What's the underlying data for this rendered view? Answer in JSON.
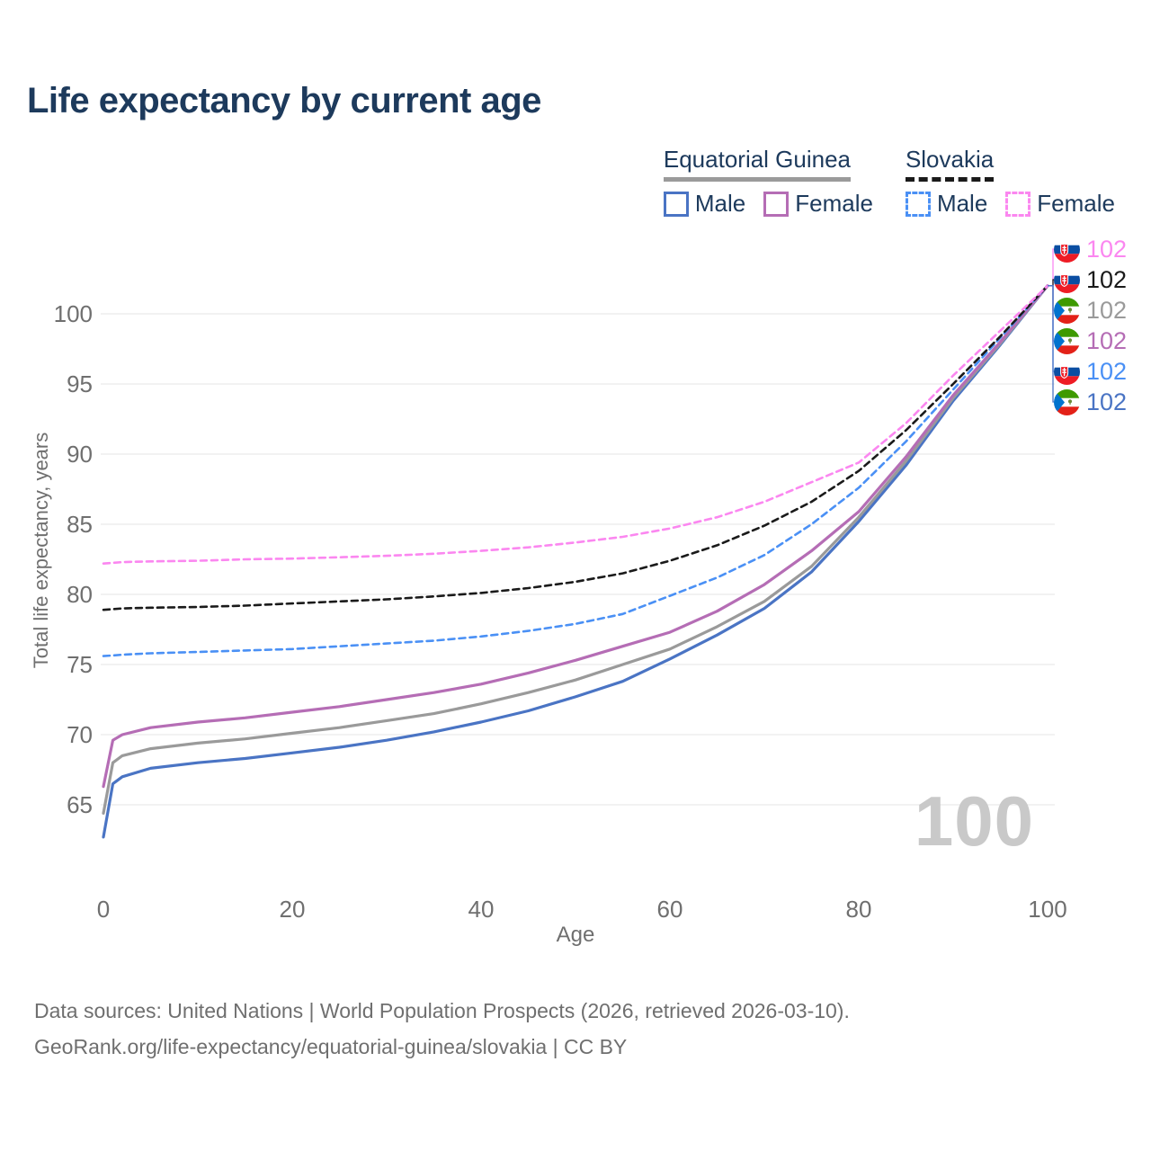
{
  "title": "Life expectancy by current age",
  "legend": {
    "groups": [
      {
        "name": "Equatorial Guinea",
        "line_style": "solid",
        "line_color": "#9a9a9a",
        "items": [
          {
            "label": "Male",
            "color": "#4a74c4",
            "dashed": false
          },
          {
            "label": "Female",
            "color": "#b56db5",
            "dashed": false
          }
        ]
      },
      {
        "name": "Slovakia",
        "line_style": "dashed",
        "line_color": "#1a1a1a",
        "items": [
          {
            "label": "Male",
            "color": "#4a90f5",
            "dashed": true
          },
          {
            "label": "Female",
            "color": "#fb87f0",
            "dashed": true
          }
        ]
      }
    ]
  },
  "y_axis": {
    "label": "Total life expectancy, years",
    "ticks": [
      100,
      95,
      90,
      85,
      80,
      75,
      70,
      65
    ]
  },
  "x_axis": {
    "label": "Age",
    "ticks": [
      0,
      20,
      40,
      60,
      80,
      100
    ]
  },
  "age_indicator": "100",
  "end_labels": [
    {
      "flag": "sk",
      "country": "Slovakia",
      "series": "Female",
      "value": "102",
      "color": "#fb87f0"
    },
    {
      "flag": "sk",
      "country": "Slovakia",
      "series": "All",
      "value": "102",
      "color": "#1a1a1a"
    },
    {
      "flag": "gq",
      "country": "Equatorial Guinea",
      "series": "All",
      "value": "102",
      "color": "#9a9a9a"
    },
    {
      "flag": "gq",
      "country": "Equatorial Guinea",
      "series": "Female",
      "value": "102",
      "color": "#b56db5"
    },
    {
      "flag": "sk",
      "country": "Slovakia",
      "series": "Male",
      "value": "102",
      "color": "#4a90f5"
    },
    {
      "flag": "gq",
      "country": "Equatorial Guinea",
      "series": "Male",
      "value": "102",
      "color": "#4a74c4"
    }
  ],
  "footer": {
    "line1": "Data sources: United Nations | World Population Prospects (2026, retrieved 2026-03-10).",
    "line2": "GeoRank.org/life-expectancy/equatorial-guinea/slovakia | CC BY"
  },
  "chart_data": {
    "type": "line",
    "title": "Life expectancy by current age",
    "xlabel": "Age",
    "ylabel": "Total life expectancy, years",
    "xlim": [
      0,
      100
    ],
    "ylim": [
      62,
      103
    ],
    "grid": "horizontal-only",
    "legend_position": "top-right",
    "x": [
      0,
      1,
      2,
      5,
      10,
      15,
      20,
      25,
      30,
      35,
      40,
      45,
      50,
      55,
      60,
      65,
      70,
      75,
      80,
      85,
      90,
      95,
      100
    ],
    "series": [
      {
        "name": "Equatorial Guinea Male",
        "color": "#4a74c4",
        "dash": false,
        "values": [
          62.7,
          66.5,
          67.0,
          67.6,
          68.0,
          68.3,
          68.7,
          69.1,
          69.6,
          70.2,
          70.9,
          71.7,
          72.7,
          73.8,
          75.4,
          77.1,
          79.0,
          81.6,
          85.2,
          89.2,
          93.8,
          97.8,
          102
        ]
      },
      {
        "name": "Equatorial Guinea All",
        "color": "#9a9a9a",
        "dash": false,
        "values": [
          64.4,
          68.0,
          68.5,
          69.0,
          69.4,
          69.7,
          70.1,
          70.5,
          71.0,
          71.5,
          72.2,
          73.0,
          73.9,
          75.0,
          76.1,
          77.7,
          79.5,
          82.0,
          85.5,
          89.5,
          94.0,
          97.9,
          102
        ]
      },
      {
        "name": "Equatorial Guinea Female",
        "color": "#b56db5",
        "dash": false,
        "values": [
          66.3,
          69.6,
          70.0,
          70.5,
          70.9,
          71.2,
          71.6,
          72.0,
          72.5,
          73.0,
          73.6,
          74.4,
          75.3,
          76.3,
          77.3,
          78.8,
          80.7,
          83.1,
          85.9,
          89.8,
          94.2,
          98.0,
          102
        ]
      },
      {
        "name": "Slovakia Male",
        "color": "#4a90f5",
        "dash": true,
        "values": [
          75.6,
          75.65,
          75.7,
          75.8,
          75.9,
          76.0,
          76.1,
          76.3,
          76.5,
          76.7,
          77.0,
          77.4,
          77.9,
          78.6,
          79.9,
          81.2,
          82.8,
          85.0,
          87.6,
          90.9,
          94.6,
          98.3,
          102
        ]
      },
      {
        "name": "Slovakia All",
        "color": "#1a1a1a",
        "dash": true,
        "values": [
          78.9,
          78.95,
          79.0,
          79.05,
          79.1,
          79.2,
          79.35,
          79.5,
          79.65,
          79.85,
          80.1,
          80.45,
          80.9,
          81.5,
          82.4,
          83.5,
          84.9,
          86.6,
          88.8,
          91.7,
          95.0,
          98.4,
          102
        ]
      },
      {
        "name": "Slovakia Female",
        "color": "#fb87f0",
        "dash": true,
        "values": [
          82.2,
          82.25,
          82.3,
          82.35,
          82.4,
          82.5,
          82.55,
          82.65,
          82.75,
          82.9,
          83.1,
          83.35,
          83.7,
          84.1,
          84.7,
          85.5,
          86.6,
          88.0,
          89.4,
          92.2,
          95.6,
          98.8,
          102
        ]
      }
    ],
    "end_values": {
      "Slovakia Female": 102,
      "Slovakia All": 102,
      "Equatorial Guinea All": 102,
      "Equatorial Guinea Female": 102,
      "Slovakia Male": 102,
      "Equatorial Guinea Male": 102
    }
  }
}
